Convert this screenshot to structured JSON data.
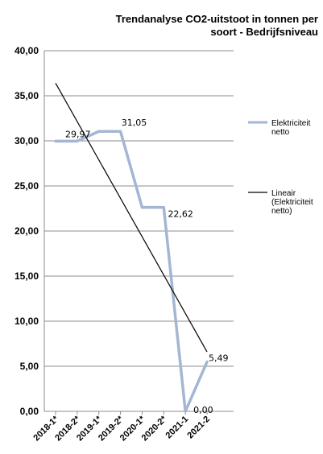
{
  "chart_data": {
    "type": "line",
    "title_lines": [
      "Trendanalyse CO2-uitstoot in tonnen per",
      "soort - Bedrijfsniveau"
    ],
    "categories": [
      "2018-1*",
      "2018-2*",
      "2019-1*",
      "2019-2*",
      "2020-1*",
      "2020-2*",
      "2021-1",
      "2021-2"
    ],
    "ylim": [
      0,
      40
    ],
    "yticks": [
      "0,00",
      "5,00",
      "10,00",
      "15,00",
      "20,00",
      "25,00",
      "30,00",
      "35,00",
      "40,00"
    ],
    "ytick_values": [
      0,
      5,
      10,
      15,
      20,
      25,
      30,
      35,
      40
    ],
    "grid": true,
    "legend_position": "right",
    "series": [
      {
        "name": "Elektriciteit netto",
        "legend_lines": [
          "Elektriciteit",
          "netto"
        ],
        "color": "#a4b6d3",
        "values": [
          29.97,
          29.97,
          31.05,
          31.05,
          22.62,
          22.62,
          0.0,
          5.49
        ],
        "labels": [
          "29,97",
          "",
          "31,05",
          "",
          "22,62",
          "",
          "0,00",
          "5,49"
        ]
      },
      {
        "name": "Lineair (Elektriciteit netto)",
        "legend_lines": [
          "Lineair",
          "(Elektriciteit",
          "netto)"
        ],
        "color": "#000000",
        "type": "trendline",
        "values": [
          36.4,
          32.1,
          27.9,
          23.6,
          19.4,
          15.1,
          10.8,
          6.6
        ]
      }
    ]
  }
}
